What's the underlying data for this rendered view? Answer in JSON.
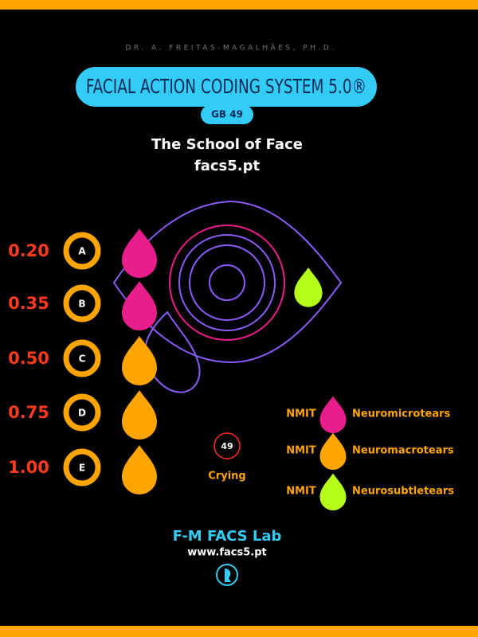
{
  "header": {
    "author": "DR. A. FREITAS-MAGALHÃES, PH.D.",
    "title": "FACIAL ACTION CODING SYSTEM 5.0®",
    "badge": "GB 49",
    "school": "The School of Face",
    "site": "facs5.pt"
  },
  "intensities": [
    {
      "value": "0.20",
      "letter": "A"
    },
    {
      "value": "0.35",
      "letter": "B"
    },
    {
      "value": "0.50",
      "letter": "C"
    },
    {
      "value": "0.75",
      "letter": "D"
    },
    {
      "value": "1.00",
      "letter": "E"
    }
  ],
  "code": {
    "number": "49",
    "label": "Crying"
  },
  "legend": [
    {
      "prefix": "NMIT",
      "label": "Neuromicrotears"
    },
    {
      "prefix": "NMIT",
      "label": "Neuromacrotears"
    },
    {
      "prefix": "NMIT",
      "label": "Neurosubtletears"
    }
  ],
  "footer": {
    "lab": "F-M FACS Lab",
    "url": "www.facs5.pt"
  }
}
